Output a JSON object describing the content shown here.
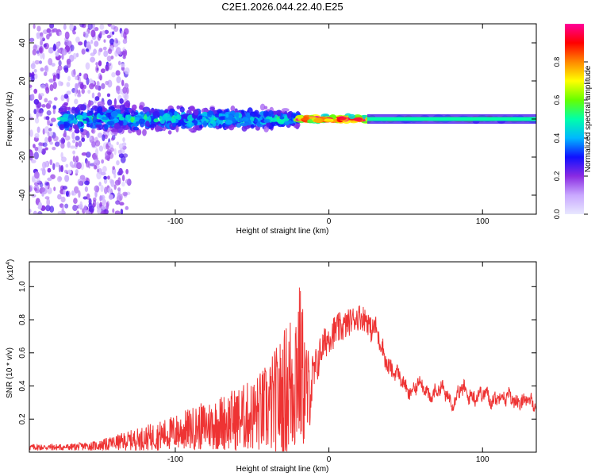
{
  "title": "C2E1.2026.044.22.40.E25",
  "colors": {
    "snr_line": "#ee3333",
    "axis": "#000000",
    "background": "#ffffff",
    "spectral_gradient": [
      "#e8e8ff",
      "#c9a8ff",
      "#8a2be2",
      "#1010ff",
      "#00b7ff",
      "#00ffaa",
      "#66ff00",
      "#ffff00",
      "#ff8800",
      "#ff0000",
      "#ff0099"
    ]
  },
  "chart_data": [
    {
      "type": "heatmap",
      "title": "C2E1.2026.044.22.40.E25",
      "xlabel": "Height of straight line (km)",
      "ylabel": "Frequency (Hz)",
      "xlim": [
        -195,
        135
      ],
      "ylim": [
        -50,
        50
      ],
      "x_ticks": [
        -100,
        0,
        100
      ],
      "x_tick_labels": [
        "-100",
        "0",
        "100"
      ],
      "y_ticks": [
        -40,
        -20,
        0,
        20,
        40
      ],
      "y_tick_labels": [
        "-40",
        "-20",
        "0",
        "20",
        "40"
      ],
      "colorbar": {
        "label": "Normalized spectral amplitude",
        "range": [
          0,
          1
        ],
        "ticks": [
          0,
          0.2,
          0.4,
          0.6,
          0.8
        ],
        "tick_labels": [
          "0.0",
          "0.2",
          "0.4",
          "0.6",
          "0.8"
        ]
      },
      "features": [
        {
          "name": "diffuse scatter",
          "x_range": [
            -195,
            -130
          ],
          "freq_range": [
            -50,
            50
          ],
          "amplitude": 0.15
        },
        {
          "name": "broad band",
          "x_range": [
            -175,
            -20
          ],
          "freq_center": 0,
          "freq_halfwidth": [
            10,
            6
          ],
          "amplitude": 0.35
        },
        {
          "name": "narrow band",
          "x_range": [
            -20,
            25
          ],
          "freq_center": 0,
          "freq_halfwidth": 2,
          "amplitude": 0.8
        },
        {
          "name": "steady line",
          "x_range": [
            25,
            135
          ],
          "freq_center": 0,
          "freq_halfwidth": 1.5,
          "amplitude": 0.6
        }
      ]
    },
    {
      "type": "line",
      "xlabel": "Height of straight line (km)",
      "ylabel": "SNR (10 * v/v)",
      "y_multiplier": "(x10",
      "y_multiplier_exp": "4",
      "y_multiplier_close": ")",
      "xlim": [
        -195,
        135
      ],
      "ylim": [
        0,
        1.15
      ],
      "x_ticks": [
        -100,
        0,
        100
      ],
      "x_tick_labels": [
        "-100",
        "0",
        "100"
      ],
      "y_ticks": [
        0.2,
        0.4,
        0.6,
        0.8,
        1.0
      ],
      "y_tick_labels": [
        "0.2",
        "0.4",
        "0.6",
        "0.8",
        "1.0"
      ],
      "envelope": {
        "x": [
          -195,
          -170,
          -150,
          -130,
          -110,
          -90,
          -70,
          -50,
          -40,
          -30,
          -25,
          -22,
          -20,
          -17,
          -14,
          -10,
          -5,
          0,
          5,
          10,
          15,
          20,
          25,
          30,
          35,
          40,
          45,
          50,
          55,
          60,
          65,
          70,
          75,
          80,
          85,
          90,
          95,
          100,
          105,
          110,
          115,
          120,
          125,
          130,
          135
        ],
        "mean": [
          0.03,
          0.03,
          0.04,
          0.07,
          0.1,
          0.14,
          0.18,
          0.22,
          0.26,
          0.34,
          0.4,
          0.5,
          0.55,
          0.45,
          0.35,
          0.45,
          0.62,
          0.7,
          0.74,
          0.76,
          0.8,
          0.82,
          0.8,
          0.72,
          0.62,
          0.52,
          0.44,
          0.4,
          0.38,
          0.4,
          0.36,
          0.37,
          0.35,
          0.33,
          0.36,
          0.34,
          0.37,
          0.33,
          0.32,
          0.36,
          0.3,
          0.34,
          0.31,
          0.28,
          0.31
        ],
        "amp": [
          0.02,
          0.02,
          0.03,
          0.06,
          0.09,
          0.13,
          0.17,
          0.22,
          0.28,
          0.38,
          0.48,
          0.55,
          0.55,
          0.45,
          0.3,
          0.15,
          0.1,
          0.1,
          0.1,
          0.09,
          0.08,
          0.08,
          0.08,
          0.07,
          0.06,
          0.05,
          0.04,
          0.04,
          0.04,
          0.04,
          0.04,
          0.04,
          0.04,
          0.04,
          0.05,
          0.04,
          0.05,
          0.04,
          0.04,
          0.04,
          0.04,
          0.04,
          0.04,
          0.04,
          0.04
        ]
      }
    }
  ]
}
